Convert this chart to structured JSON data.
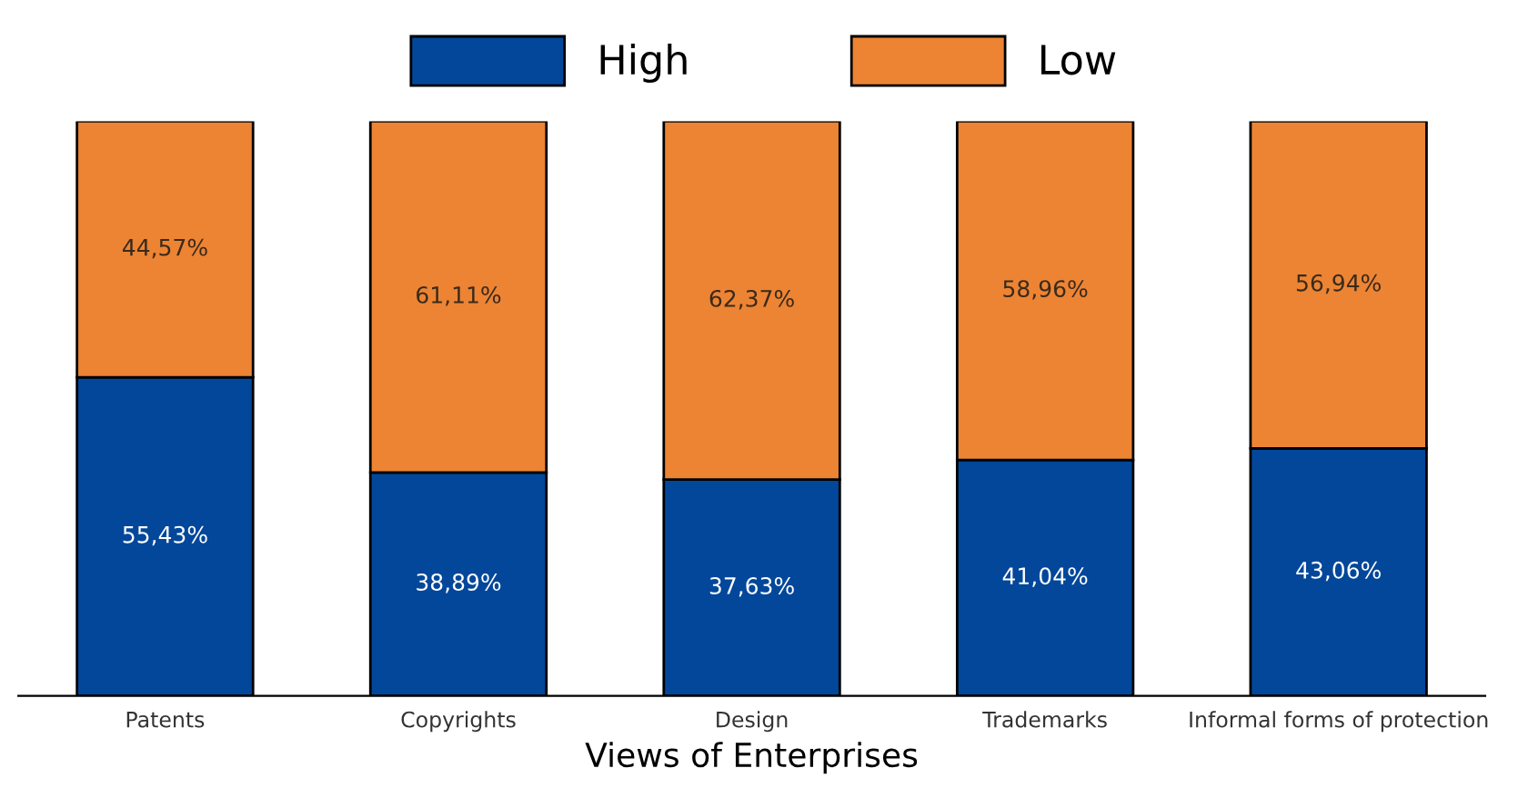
{
  "chart_data": {
    "type": "bar",
    "stacked": true,
    "xlabel": "Views of Enterprises",
    "categories": [
      "Patents",
      "Copyrights",
      "Design",
      "Trademarks",
      "Informal forms of protection"
    ],
    "series": [
      {
        "name": "High",
        "color": "#03479a",
        "values": [
          55.43,
          38.89,
          37.63,
          41.04,
          43.06
        ],
        "value_labels": [
          "55,43%",
          "38,89%",
          "37,63%",
          "41,04%",
          "43,06%"
        ]
      },
      {
        "name": "Low",
        "color": "#ec8434",
        "values": [
          44.57,
          61.11,
          62.37,
          58.96,
          56.94
        ],
        "value_labels": [
          "44,57%",
          "61,11%",
          "62,37%",
          "58,96%",
          "56,94%"
        ]
      }
    ],
    "legend": "top",
    "grid": false
  }
}
